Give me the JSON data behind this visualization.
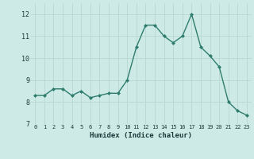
{
  "x": [
    0,
    1,
    2,
    3,
    4,
    5,
    6,
    7,
    8,
    9,
    10,
    11,
    12,
    13,
    14,
    15,
    16,
    17,
    18,
    19,
    20,
    21,
    22,
    23
  ],
  "y": [
    8.3,
    8.3,
    8.6,
    8.6,
    8.3,
    8.5,
    8.2,
    8.3,
    8.4,
    8.4,
    9.0,
    10.5,
    11.5,
    11.5,
    11.0,
    10.7,
    11.0,
    12.0,
    10.5,
    10.1,
    9.6,
    8.0,
    7.6,
    7.4
  ],
  "xlabel": "Humidex (Indice chaleur)",
  "ylim": [
    7,
    12.5
  ],
  "xlim": [
    -0.5,
    23.5
  ],
  "line_color": "#2e7d6e",
  "bg_color": "#ceeae6",
  "grid_color": "#b8d8d4",
  "tick_label_color": "#1a3a3a",
  "xlabel_color": "#1a3a3a",
  "yticks": [
    7,
    8,
    9,
    10,
    11,
    12
  ],
  "xticks": [
    0,
    1,
    2,
    3,
    4,
    5,
    6,
    7,
    8,
    9,
    10,
    11,
    12,
    13,
    14,
    15,
    16,
    17,
    18,
    19,
    20,
    21,
    22,
    23
  ]
}
